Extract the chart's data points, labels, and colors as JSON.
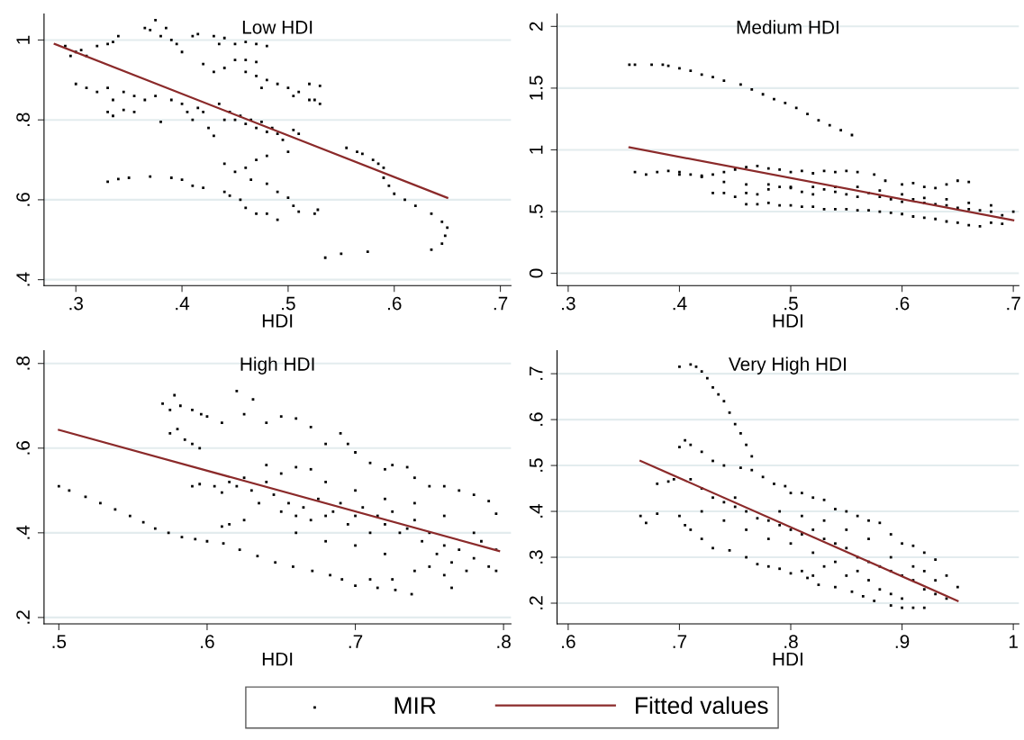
{
  "chart_data": [
    {
      "type": "scatter",
      "title": "Low HDI",
      "xlabel": "HDI",
      "xlim": [
        0.27,
        0.71
      ],
      "ylim": [
        0.385,
        1.065
      ],
      "grid": "y",
      "legend": "bottom",
      "xticks": [
        {
          "value": 0.3,
          "label": ".3"
        },
        {
          "value": 0.4,
          "label": ".4"
        },
        {
          "value": 0.5,
          "label": ".5"
        },
        {
          "value": 0.6,
          "label": ".6"
        },
        {
          "value": 0.7,
          "label": ".7"
        }
      ],
      "yticks": [
        {
          "value": 0.4,
          "label": ".4"
        },
        {
          "value": 0.6,
          "label": ".6"
        },
        {
          "value": 0.8,
          "label": ".8"
        },
        1
      ],
      "series": [
        {
          "name": "MIR",
          "color": "#000000",
          "marker": "square",
          "x": [
            0.29,
            0.3,
            0.295,
            0.31,
            0.305,
            0.32,
            0.33,
            0.335,
            0.34,
            0.365,
            0.37,
            0.375,
            0.38,
            0.385,
            0.39,
            0.395,
            0.4,
            0.41,
            0.415,
            0.43,
            0.435,
            0.44,
            0.45,
            0.46,
            0.47,
            0.48,
            0.3,
            0.31,
            0.32,
            0.33,
            0.335,
            0.33,
            0.335,
            0.345,
            0.355,
            0.345,
            0.355,
            0.365,
            0.375,
            0.38,
            0.39,
            0.4,
            0.405,
            0.41,
            0.415,
            0.42,
            0.425,
            0.43,
            0.435,
            0.44,
            0.445,
            0.45,
            0.455,
            0.46,
            0.465,
            0.47,
            0.475,
            0.48,
            0.485,
            0.49,
            0.495,
            0.5,
            0.505,
            0.51,
            0.42,
            0.43,
            0.44,
            0.45,
            0.46,
            0.47,
            0.475,
            0.48,
            0.49,
            0.5,
            0.505,
            0.51,
            0.52,
            0.525,
            0.53,
            0.53,
            0.52,
            0.46,
            0.47,
            0.33,
            0.34,
            0.35,
            0.37,
            0.39,
            0.4,
            0.41,
            0.42,
            0.44,
            0.445,
            0.455,
            0.46,
            0.47,
            0.48,
            0.49,
            0.44,
            0.45,
            0.46,
            0.465,
            0.47,
            0.48,
            0.48,
            0.49,
            0.5,
            0.505,
            0.51,
            0.525,
            0.528,
            0.555,
            0.565,
            0.57,
            0.58,
            0.585,
            0.59,
            0.59,
            0.595,
            0.6,
            0.61,
            0.62,
            0.635,
            0.645,
            0.65,
            0.648,
            0.645,
            0.635,
            0.535,
            0.55,
            0.575
          ],
          "values": [
            0.985,
            0.97,
            0.96,
            0.96,
            0.975,
            0.985,
            0.99,
            0.995,
            1.01,
            1.03,
            1.025,
            1.05,
            1.01,
            1.03,
            1.0,
            0.99,
            0.97,
            1.01,
            1.015,
            1.01,
            0.99,
            1.005,
            0.99,
            0.995,
            0.99,
            0.985,
            0.89,
            0.88,
            0.87,
            0.88,
            0.85,
            0.82,
            0.81,
            0.825,
            0.82,
            0.87,
            0.86,
            0.85,
            0.86,
            0.795,
            0.85,
            0.84,
            0.82,
            0.8,
            0.83,
            0.82,
            0.78,
            0.76,
            0.84,
            0.8,
            0.82,
            0.8,
            0.81,
            0.79,
            0.8,
            0.78,
            0.795,
            0.77,
            0.78,
            0.765,
            0.75,
            0.72,
            0.775,
            0.765,
            0.94,
            0.92,
            0.93,
            0.95,
            0.92,
            0.91,
            0.88,
            0.9,
            0.89,
            0.88,
            0.86,
            0.87,
            0.85,
            0.85,
            0.84,
            0.885,
            0.89,
            0.95,
            0.945,
            0.645,
            0.652,
            0.655,
            0.658,
            0.655,
            0.65,
            0.635,
            0.63,
            0.62,
            0.61,
            0.6,
            0.58,
            0.565,
            0.565,
            0.55,
            0.69,
            0.67,
            0.68,
            0.65,
            0.7,
            0.71,
            0.64,
            0.62,
            0.605,
            0.585,
            0.57,
            0.565,
            0.575,
            0.73,
            0.72,
            0.715,
            0.7,
            0.69,
            0.68,
            0.655,
            0.635,
            0.615,
            0.6,
            0.585,
            0.565,
            0.545,
            0.53,
            0.51,
            0.49,
            0.475,
            0.455,
            0.465,
            0.47
          ]
        },
        {
          "name": "Fitted values",
          "type": "line",
          "color": "#8b2a2a",
          "marker": "none",
          "x": [
            0.28,
            0.65
          ],
          "values": [
            0.99,
            0.605
          ]
        }
      ]
    },
    {
      "type": "scatter",
      "title": "Medium HDI",
      "xlabel": "HDI",
      "xlim": [
        0.29,
        0.705
      ],
      "ylim": [
        -0.1,
        2.1
      ],
      "grid": "y",
      "xticks": [
        {
          "value": 0.3,
          "label": ".3"
        },
        {
          "value": 0.4,
          "label": ".4"
        },
        {
          "value": 0.5,
          "label": ".5"
        },
        {
          "value": 0.6,
          "label": ".6"
        },
        {
          "value": 0.7,
          "label": ".7"
        }
      ],
      "yticks": [
        0,
        {
          "value": 0.5,
          "label": ".5"
        },
        1,
        1.5,
        2
      ],
      "series": [
        {
          "color": "#000000",
          "marker": "square",
          "x": [
            0.355,
            0.36,
            0.375,
            0.385,
            0.39,
            0.4,
            0.41,
            0.42,
            0.43,
            0.44,
            0.455,
            0.465,
            0.475,
            0.485,
            0.495,
            0.505,
            0.515,
            0.525,
            0.535,
            0.545,
            0.555,
            0.36,
            0.37,
            0.38,
            0.39,
            0.4,
            0.41,
            0.42,
            0.43,
            0.44,
            0.45,
            0.46,
            0.47,
            0.48,
            0.49,
            0.5,
            0.51,
            0.52,
            0.53,
            0.54,
            0.55,
            0.56,
            0.575,
            0.585,
            0.6,
            0.61,
            0.62,
            0.63,
            0.64,
            0.65,
            0.66,
            0.43,
            0.44,
            0.45,
            0.46,
            0.47,
            0.48,
            0.49,
            0.5,
            0.51,
            0.52,
            0.53,
            0.54,
            0.55,
            0.56,
            0.57,
            0.58,
            0.59,
            0.6,
            0.61,
            0.62,
            0.63,
            0.64,
            0.65,
            0.66,
            0.67,
            0.68,
            0.69,
            0.7,
            0.46,
            0.47,
            0.48,
            0.49,
            0.5,
            0.51,
            0.52,
            0.53,
            0.54,
            0.55,
            0.56,
            0.57,
            0.58,
            0.59,
            0.6,
            0.61,
            0.62,
            0.63,
            0.64,
            0.65,
            0.66,
            0.67,
            0.68,
            0.69,
            0.4,
            0.42,
            0.44,
            0.46,
            0.48,
            0.5,
            0.52,
            0.54,
            0.56,
            0.58,
            0.6,
            0.62,
            0.64,
            0.66,
            0.68
          ],
          "values": [
            1.69,
            1.69,
            1.69,
            1.69,
            1.68,
            1.66,
            1.64,
            1.61,
            1.59,
            1.56,
            1.53,
            1.49,
            1.45,
            1.41,
            1.38,
            1.34,
            1.29,
            1.24,
            1.2,
            1.16,
            1.12,
            0.82,
            0.8,
            0.82,
            0.83,
            0.82,
            0.8,
            0.79,
            0.8,
            0.82,
            0.84,
            0.86,
            0.87,
            0.85,
            0.84,
            0.82,
            0.83,
            0.81,
            0.83,
            0.82,
            0.83,
            0.82,
            0.8,
            0.75,
            0.72,
            0.73,
            0.7,
            0.69,
            0.72,
            0.75,
            0.74,
            0.65,
            0.65,
            0.62,
            0.65,
            0.64,
            0.68,
            0.7,
            0.69,
            0.66,
            0.64,
            0.68,
            0.66,
            0.64,
            0.62,
            0.65,
            0.62,
            0.6,
            0.58,
            0.6,
            0.57,
            0.56,
            0.55,
            0.53,
            0.52,
            0.51,
            0.5,
            0.47,
            0.5,
            0.56,
            0.56,
            0.57,
            0.55,
            0.55,
            0.54,
            0.54,
            0.52,
            0.52,
            0.52,
            0.51,
            0.51,
            0.5,
            0.49,
            0.48,
            0.46,
            0.45,
            0.44,
            0.42,
            0.41,
            0.39,
            0.38,
            0.41,
            0.4,
            0.8,
            0.78,
            0.74,
            0.72,
            0.72,
            0.7,
            0.7,
            0.7,
            0.7,
            0.67,
            0.64,
            0.61,
            0.6,
            0.57,
            0.55
          ]
        },
        {
          "type": "line",
          "color": "#8b2a2a",
          "marker": "none",
          "x": [
            0.355,
            0.7
          ],
          "values": [
            1.02,
            0.43
          ]
        }
      ]
    },
    {
      "type": "scatter",
      "title": "High HDI",
      "xlabel": "HDI",
      "xlim": [
        0.49,
        0.805
      ],
      "ylim": [
        0.185,
        0.83
      ],
      "grid": "y",
      "xticks": [
        {
          "value": 0.5,
          "label": ".5"
        },
        {
          "value": 0.6,
          "label": ".6"
        },
        {
          "value": 0.7,
          "label": ".7"
        },
        {
          "value": 0.8,
          "label": ".8"
        }
      ],
      "yticks": [
        {
          "value": 0.2,
          "label": ".2"
        },
        {
          "value": 0.4,
          "label": ".4"
        },
        {
          "value": 0.6,
          "label": ".6"
        },
        {
          "value": 0.8,
          "label": ".8"
        }
      ],
      "series": [
        {
          "color": "#000000",
          "marker": "square",
          "x": [
            0.5,
            0.507,
            0.518,
            0.528,
            0.538,
            0.548,
            0.557,
            0.565,
            0.574,
            0.583,
            0.592,
            0.6,
            0.611,
            0.622,
            0.634,
            0.646,
            0.658,
            0.671,
            0.683,
            0.691,
            0.7,
            0.715,
            0.727,
            0.738,
            0.57,
            0.578,
            0.575,
            0.582,
            0.59,
            0.596,
            0.6,
            0.575,
            0.58,
            0.585,
            0.59,
            0.595,
            0.62,
            0.631,
            0.625,
            0.61,
            0.64,
            0.65,
            0.66,
            0.67,
            0.68,
            0.69,
            0.695,
            0.7,
            0.71,
            0.72,
            0.725,
            0.735,
            0.74,
            0.75,
            0.76,
            0.77,
            0.78,
            0.79,
            0.795,
            0.59,
            0.595,
            0.605,
            0.61,
            0.615,
            0.62,
            0.625,
            0.63,
            0.635,
            0.64,
            0.645,
            0.65,
            0.655,
            0.66,
            0.665,
            0.67,
            0.675,
            0.68,
            0.685,
            0.69,
            0.695,
            0.7,
            0.705,
            0.71,
            0.715,
            0.72,
            0.725,
            0.73,
            0.735,
            0.74,
            0.745,
            0.75,
            0.755,
            0.76,
            0.765,
            0.77,
            0.775,
            0.78,
            0.785,
            0.79,
            0.795,
            0.66,
            0.68,
            0.7,
            0.72,
            0.74,
            0.75,
            0.76,
            0.765,
            0.71,
            0.725,
            0.61,
            0.615,
            0.625,
            0.64,
            0.66,
            0.68,
            0.7,
            0.72,
            0.74,
            0.76,
            0.78,
            0.795,
            0.65,
            0.67
          ],
          "values": [
            0.51,
            0.5,
            0.485,
            0.47,
            0.455,
            0.44,
            0.425,
            0.41,
            0.4,
            0.39,
            0.385,
            0.38,
            0.375,
            0.36,
            0.345,
            0.33,
            0.32,
            0.31,
            0.3,
            0.29,
            0.275,
            0.27,
            0.265,
            0.255,
            0.705,
            0.725,
            0.69,
            0.7,
            0.69,
            0.68,
            0.675,
            0.635,
            0.645,
            0.62,
            0.61,
            0.6,
            0.735,
            0.715,
            0.68,
            0.66,
            0.66,
            0.675,
            0.67,
            0.65,
            0.61,
            0.635,
            0.61,
            0.59,
            0.565,
            0.55,
            0.56,
            0.555,
            0.53,
            0.51,
            0.51,
            0.5,
            0.49,
            0.475,
            0.445,
            0.51,
            0.515,
            0.51,
            0.495,
            0.52,
            0.51,
            0.53,
            0.5,
            0.47,
            0.52,
            0.49,
            0.45,
            0.47,
            0.44,
            0.46,
            0.43,
            0.48,
            0.44,
            0.45,
            0.47,
            0.42,
            0.44,
            0.46,
            0.4,
            0.44,
            0.42,
            0.45,
            0.4,
            0.41,
            0.43,
            0.38,
            0.4,
            0.35,
            0.37,
            0.33,
            0.36,
            0.31,
            0.34,
            0.38,
            0.32,
            0.36,
            0.4,
            0.38,
            0.37,
            0.35,
            0.31,
            0.32,
            0.3,
            0.27,
            0.29,
            0.29,
            0.415,
            0.42,
            0.43,
            0.56,
            0.555,
            0.52,
            0.5,
            0.48,
            0.47,
            0.44,
            0.4,
            0.31,
            0.54,
            0.55
          ]
        },
        {
          "type": "line",
          "color": "#8b2a2a",
          "marker": "none",
          "x": [
            0.5,
            0.797
          ],
          "values": [
            0.643,
            0.357
          ]
        }
      ]
    },
    {
      "type": "scatter",
      "title": "Very High HDI",
      "xlabel": "HDI",
      "xlim": [
        0.59,
        1.005
      ],
      "ylim": [
        0.155,
        0.75
      ],
      "grid": "y",
      "xticks": [
        {
          "value": 0.6,
          "label": ".6"
        },
        {
          "value": 0.7,
          "label": ".7"
        },
        {
          "value": 0.8,
          "label": ".8"
        },
        {
          "value": 0.9,
          "label": ".9"
        },
        1
      ],
      "yticks": [
        {
          "value": 0.2,
          "label": ".2"
        },
        {
          "value": 0.3,
          "label": ".3"
        },
        {
          "value": 0.4,
          "label": ".4"
        },
        {
          "value": 0.5,
          "label": ".5"
        },
        {
          "value": 0.6,
          "label": ".6"
        },
        {
          "value": 0.7,
          "label": ".7"
        }
      ],
      "series": [
        {
          "color": "#000000",
          "marker": "square",
          "x": [
            0.7,
            0.71,
            0.715,
            0.72,
            0.725,
            0.73,
            0.735,
            0.74,
            0.745,
            0.75,
            0.755,
            0.76,
            0.765,
            0.665,
            0.67,
            0.68,
            0.68,
            0.69,
            0.695,
            0.7,
            0.705,
            0.71,
            0.72,
            0.73,
            0.74,
            0.755,
            0.765,
            0.775,
            0.785,
            0.795,
            0.8,
            0.81,
            0.82,
            0.83,
            0.84,
            0.85,
            0.86,
            0.87,
            0.88,
            0.89,
            0.9,
            0.91,
            0.92,
            0.93,
            0.94,
            0.95,
            0.7,
            0.705,
            0.71,
            0.72,
            0.73,
            0.745,
            0.76,
            0.77,
            0.78,
            0.79,
            0.8,
            0.815,
            0.825,
            0.84,
            0.855,
            0.865,
            0.875,
            0.89,
            0.9,
            0.91,
            0.92,
            0.71,
            0.72,
            0.73,
            0.74,
            0.75,
            0.76,
            0.77,
            0.78,
            0.79,
            0.8,
            0.81,
            0.82,
            0.83,
            0.84,
            0.85,
            0.86,
            0.87,
            0.88,
            0.89,
            0.9,
            0.91,
            0.92,
            0.93,
            0.94,
            0.8,
            0.82,
            0.84,
            0.86,
            0.87,
            0.88,
            0.89,
            0.9,
            0.78,
            0.79,
            0.81,
            0.83,
            0.85,
            0.87,
            0.89,
            0.91,
            0.92,
            0.93,
            0.75,
            0.76,
            0.74,
            0.72,
            0.83,
            0.85,
            0.82,
            0.81
          ],
          "values": [
            0.715,
            0.72,
            0.715,
            0.705,
            0.69,
            0.67,
            0.655,
            0.64,
            0.615,
            0.59,
            0.57,
            0.545,
            0.52,
            0.39,
            0.375,
            0.395,
            0.46,
            0.465,
            0.47,
            0.54,
            0.555,
            0.545,
            0.53,
            0.51,
            0.5,
            0.495,
            0.49,
            0.475,
            0.46,
            0.455,
            0.44,
            0.44,
            0.43,
            0.425,
            0.405,
            0.4,
            0.39,
            0.38,
            0.375,
            0.35,
            0.33,
            0.325,
            0.31,
            0.295,
            0.26,
            0.235,
            0.39,
            0.37,
            0.36,
            0.34,
            0.32,
            0.315,
            0.3,
            0.285,
            0.28,
            0.275,
            0.265,
            0.255,
            0.24,
            0.235,
            0.225,
            0.215,
            0.205,
            0.195,
            0.19,
            0.19,
            0.19,
            0.47,
            0.45,
            0.43,
            0.42,
            0.41,
            0.4,
            0.385,
            0.38,
            0.37,
            0.36,
            0.35,
            0.36,
            0.34,
            0.33,
            0.32,
            0.3,
            0.29,
            0.28,
            0.27,
            0.26,
            0.25,
            0.23,
            0.22,
            0.21,
            0.33,
            0.31,
            0.29,
            0.27,
            0.25,
            0.23,
            0.22,
            0.21,
            0.34,
            0.4,
            0.39,
            0.38,
            0.36,
            0.34,
            0.3,
            0.28,
            0.27,
            0.25,
            0.43,
            0.36,
            0.38,
            0.4,
            0.28,
            0.26,
            0.26,
            0.27
          ]
        },
        {
          "type": "line",
          "color": "#8b2a2a",
          "marker": "none",
          "x": [
            0.665,
            0.95
          ],
          "values": [
            0.51,
            0.205
          ]
        }
      ]
    }
  ]
}
